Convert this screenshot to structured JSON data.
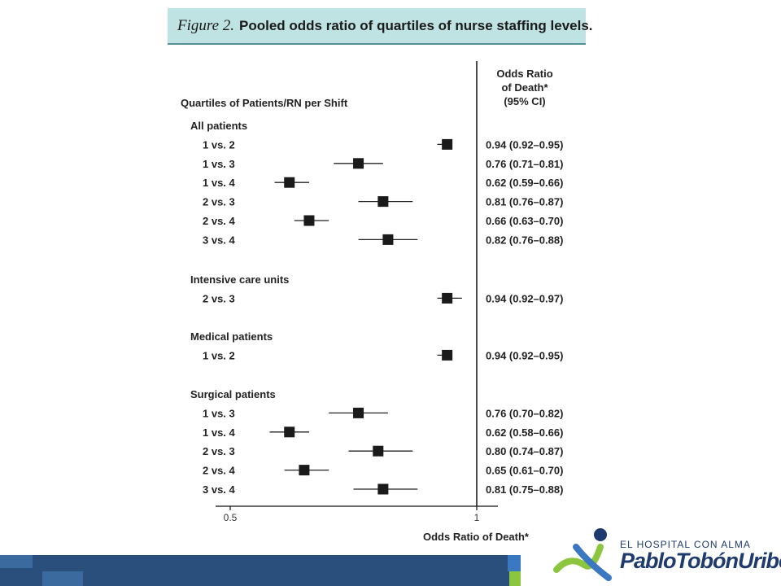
{
  "title": {
    "figure_label": "Figure 2.",
    "text": "Pooled odds ratio of quartiles of nurse staffing levels."
  },
  "column_header_left": "Quartiles of Patients/RN per Shift",
  "column_header_right": [
    "Odds Ratio",
    "of Death*",
    "(95% CI)"
  ],
  "logo": {
    "tagline": "EL HOSPITAL CON ALMA",
    "name": "PabloTobónUribe"
  },
  "colors": {
    "title_bg": "#bfe3e3",
    "marker": "#1a1a1a",
    "band": "#2b4f7c",
    "logo_green": "#8cc63f",
    "logo_blue": "#1e3a6e"
  },
  "chart_data": {
    "type": "forest",
    "xlabel": "Odds Ratio of Death*",
    "xticks": [
      0.5,
      1
    ],
    "xtick_labels": [
      "0.5",
      "1"
    ],
    "xlim": [
      0.48,
      1.06
    ],
    "reference_line": 1,
    "groups": [
      {
        "name": "All patients",
        "rows": [
          {
            "label": "1 vs. 2",
            "or": 0.94,
            "lo": 0.92,
            "hi": 0.95,
            "text": "0.94 (0.92–0.95)"
          },
          {
            "label": "1 vs. 3",
            "or": 0.76,
            "lo": 0.71,
            "hi": 0.81,
            "text": "0.76 (0.71–0.81)"
          },
          {
            "label": "1 vs. 4",
            "or": 0.62,
            "lo": 0.59,
            "hi": 0.66,
            "text": "0.62 (0.59–0.66)"
          },
          {
            "label": "2 vs. 3",
            "or": 0.81,
            "lo": 0.76,
            "hi": 0.87,
            "text": "0.81 (0.76–0.87)"
          },
          {
            "label": "2 vs. 4",
            "or": 0.66,
            "lo": 0.63,
            "hi": 0.7,
            "text": "0.66 (0.63–0.70)"
          },
          {
            "label": "3 vs. 4",
            "or": 0.82,
            "lo": 0.76,
            "hi": 0.88,
            "text": "0.82 (0.76–0.88)"
          }
        ]
      },
      {
        "name": "Intensive care units",
        "rows": [
          {
            "label": "2 vs. 3",
            "or": 0.94,
            "lo": 0.92,
            "hi": 0.97,
            "text": "0.94 (0.92–0.97)"
          }
        ]
      },
      {
        "name": "Medical patients",
        "rows": [
          {
            "label": "1 vs. 2",
            "or": 0.94,
            "lo": 0.92,
            "hi": 0.95,
            "text": "0.94 (0.92–0.95)"
          }
        ]
      },
      {
        "name": "Surgical patients",
        "rows": [
          {
            "label": "1 vs. 3",
            "or": 0.76,
            "lo": 0.7,
            "hi": 0.82,
            "text": "0.76 (0.70–0.82)"
          },
          {
            "label": "1 vs. 4",
            "or": 0.62,
            "lo": 0.58,
            "hi": 0.66,
            "text": "0.62 (0.58–0.66)"
          },
          {
            "label": "2 vs. 3",
            "or": 0.8,
            "lo": 0.74,
            "hi": 0.87,
            "text": "0.80 (0.74–0.87)"
          },
          {
            "label": "2 vs. 4",
            "or": 0.65,
            "lo": 0.61,
            "hi": 0.7,
            "text": "0.65 (0.61–0.70)"
          },
          {
            "label": "3 vs. 4",
            "or": 0.81,
            "lo": 0.75,
            "hi": 0.88,
            "text": "0.81 (0.75–0.88)"
          }
        ]
      }
    ]
  }
}
